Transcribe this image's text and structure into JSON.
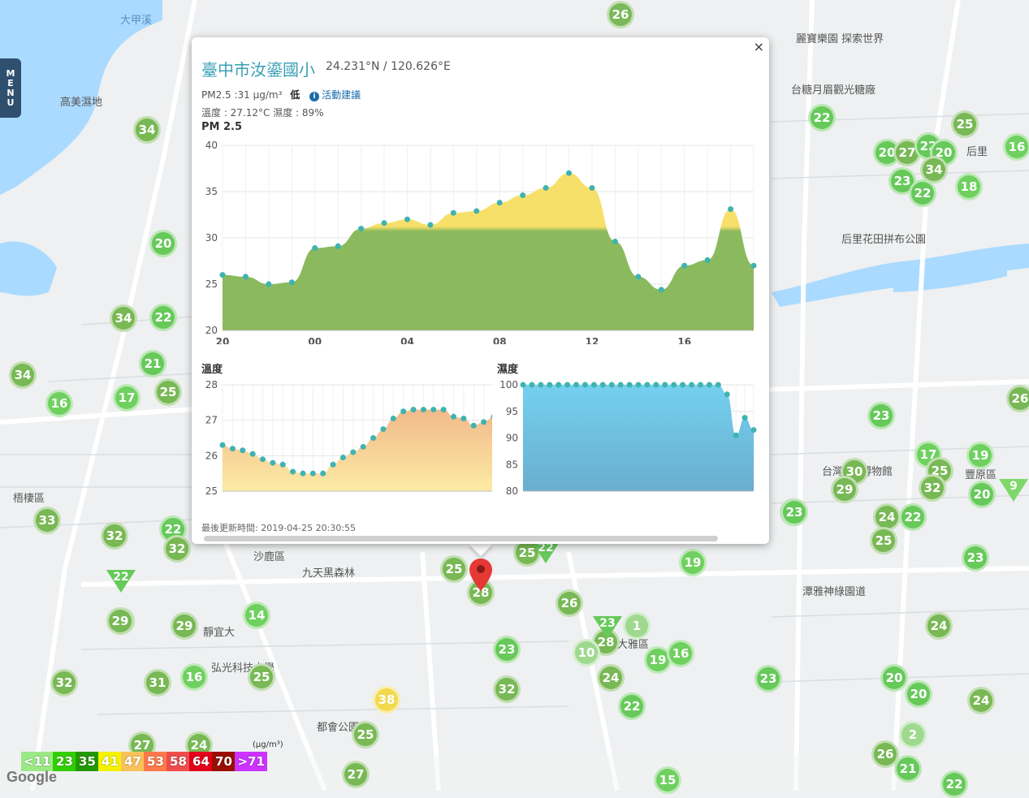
{
  "map": {
    "labels": [
      {
        "text": "大甲溪",
        "cls": "water"
      },
      {
        "text": "高美濕地",
        "cls": "place"
      },
      {
        "text": "麗寶樂園 探索世界",
        "cls": "place"
      },
      {
        "text": "台糖月眉觀光糖廠",
        "cls": "place"
      },
      {
        "text": "后里",
        "cls": "place"
      },
      {
        "text": "后里花田拼布公園",
        "cls": "place"
      },
      {
        "text": "梧棲區",
        "cls": "place"
      },
      {
        "text": "沙鹿區",
        "cls": "place"
      },
      {
        "text": "九天黑森林",
        "cls": "place"
      },
      {
        "text": "靜宜大",
        "cls": "place"
      },
      {
        "text": "弘光科技大學",
        "cls": "place"
      },
      {
        "text": "都會公園",
        "cls": "place"
      },
      {
        "text": "台灣",
        "cls": "place"
      },
      {
        "text": "博物館",
        "cls": "place"
      },
      {
        "text": "潭雅神綠園道",
        "cls": "place"
      },
      {
        "text": "豐原區",
        "cls": "place"
      },
      {
        "text": "大雅區",
        "cls": "place"
      }
    ],
    "markers": [
      {
        "v": "26",
        "c": "#7ab85a"
      },
      {
        "v": "34",
        "c": "#78b855"
      },
      {
        "v": "20",
        "c": "#66c95a"
      },
      {
        "v": "34",
        "c": "#78b855"
      },
      {
        "v": "22",
        "c": "#66c95a"
      },
      {
        "v": "21",
        "c": "#66c95a"
      },
      {
        "v": "34",
        "c": "#78b855"
      },
      {
        "v": "16",
        "c": "#6fd060"
      },
      {
        "v": "17",
        "c": "#6fd060"
      },
      {
        "v": "25",
        "c": "#78b855"
      },
      {
        "v": "33",
        "c": "#78b855"
      },
      {
        "v": "32",
        "c": "#78b855"
      },
      {
        "v": "22",
        "c": "#66c95a"
      },
      {
        "v": "32",
        "c": "#78b855"
      },
      {
        "v": "22",
        "c": "#66c95a"
      },
      {
        "v": "29",
        "c": "#78b855"
      },
      {
        "v": "29",
        "c": "#78b855"
      },
      {
        "v": "14",
        "c": "#6fd060"
      },
      {
        "v": "32",
        "c": "#78b855"
      },
      {
        "v": "31",
        "c": "#78b855"
      },
      {
        "v": "16",
        "c": "#6fd060"
      },
      {
        "v": "25",
        "c": "#78b855"
      },
      {
        "v": "27",
        "c": "#78b855"
      },
      {
        "v": "24",
        "c": "#78b855"
      },
      {
        "v": "25",
        "c": "#78b855"
      },
      {
        "v": "27",
        "c": "#78b855"
      },
      {
        "v": "38",
        "c": "#f2d94e"
      },
      {
        "v": "25",
        "c": "#78b855"
      },
      {
        "v": "28",
        "c": "#78b855"
      },
      {
        "v": "25",
        "c": "#78b855"
      },
      {
        "v": "26",
        "c": "#78b855"
      },
      {
        "v": "19",
        "c": "#6fd060"
      },
      {
        "v": "23",
        "c": "#66c95a"
      },
      {
        "v": "28",
        "c": "#78b855"
      },
      {
        "v": "1",
        "c": "#9ed98f"
      },
      {
        "v": "10",
        "c": "#9ed98f"
      },
      {
        "v": "19",
        "c": "#6fd060"
      },
      {
        "v": "16",
        "c": "#6fd060"
      },
      {
        "v": "24",
        "c": "#78b855"
      },
      {
        "v": "32",
        "c": "#78b855"
      },
      {
        "v": "22",
        "c": "#66c95a"
      },
      {
        "v": "15",
        "c": "#6fd060"
      },
      {
        "v": "23",
        "c": "#66c95a"
      },
      {
        "v": "20",
        "c": "#66c95a"
      },
      {
        "v": "30",
        "c": "#78b855"
      },
      {
        "v": "29",
        "c": "#78b855"
      },
      {
        "v": "24",
        "c": "#78b855"
      },
      {
        "v": "22",
        "c": "#66c95a"
      },
      {
        "v": "25",
        "c": "#78b855"
      },
      {
        "v": "23",
        "c": "#66c95a"
      },
      {
        "v": "17",
        "c": "#6fd060"
      },
      {
        "v": "25",
        "c": "#78b855"
      },
      {
        "v": "32",
        "c": "#78b855"
      },
      {
        "v": "19",
        "c": "#6fd060"
      },
      {
        "v": "20",
        "c": "#66c95a"
      },
      {
        "v": "23",
        "c": "#66c95a"
      },
      {
        "v": "24",
        "c": "#78b855"
      },
      {
        "v": "20",
        "c": "#66c95a"
      },
      {
        "v": "20",
        "c": "#66c95a"
      },
      {
        "v": "24",
        "c": "#78b855"
      },
      {
        "v": "2",
        "c": "#9ed98f"
      },
      {
        "v": "26",
        "c": "#78b855"
      },
      {
        "v": "21",
        "c": "#66c95a"
      },
      {
        "v": "22",
        "c": "#66c95a"
      },
      {
        "v": "22",
        "c": "#66c95a"
      },
      {
        "v": "25",
        "c": "#78b855"
      },
      {
        "v": "20",
        "c": "#66c95a"
      },
      {
        "v": "27",
        "c": "#78b855"
      },
      {
        "v": "22",
        "c": "#66c95a"
      },
      {
        "v": "20",
        "c": "#66c95a"
      },
      {
        "v": "34",
        "c": "#78b855"
      },
      {
        "v": "23",
        "c": "#66c95a"
      },
      {
        "v": "22",
        "c": "#66c95a"
      },
      {
        "v": "18",
        "c": "#6fd060"
      },
      {
        "v": "16",
        "c": "#6fd060"
      },
      {
        "v": "26",
        "c": "#78b855"
      },
      {
        "v": "23",
        "c": "#66c95a"
      }
    ],
    "triangles": [
      {
        "v": "22",
        "c": "#66c95a"
      },
      {
        "v": "22",
        "c": "#66c95a"
      },
      {
        "v": "23",
        "c": "#66c95a"
      },
      {
        "v": "9",
        "c": "#7fd86a"
      }
    ],
    "selected_marker_icon": "map-pin-icon"
  },
  "menu": {
    "letters": [
      "M",
      "E",
      "N",
      "U"
    ]
  },
  "popup": {
    "close_label": "×",
    "station_name": "臺中市汝鎏國小",
    "coords": "24.231°N / 120.626°E",
    "pm_text": "PM2.5 :31 μg/m³",
    "pm_level": "低",
    "info_icon": "i",
    "advice_label": "活動建議",
    "temp_humidity_text": "溫度 : 27.12°C  濕度 : 89%",
    "pm_chart_title": "PM 2.5",
    "temp_chart_title": "溫度",
    "hum_chart_title": "濕度",
    "updated_text": "最後更新時間: 2019-04-25 20:30:55"
  },
  "chart_data": [
    {
      "type": "area",
      "title": "PM 2.5",
      "ylim": [
        20,
        40
      ],
      "yticks": [
        "20",
        "25",
        "30",
        "35",
        "40"
      ],
      "xticks": [
        "20",
        "00",
        "04",
        "08",
        "12",
        "16"
      ],
      "x": [
        0,
        1,
        2,
        3,
        4,
        5,
        6,
        7,
        8,
        9,
        10,
        11,
        12,
        13,
        14,
        15,
        16,
        17,
        18,
        19,
        20,
        21,
        22,
        23
      ],
      "values": [
        26.0,
        25.8,
        25.0,
        25.2,
        28.9,
        29.1,
        31.0,
        31.6,
        32.0,
        31.4,
        32.7,
        32.9,
        33.8,
        34.6,
        35.4,
        37.0,
        35.4,
        29.6,
        25.8,
        24.4,
        27.0,
        27.6,
        33.1,
        27.0
      ],
      "colors": {
        "low": "#8bba5e",
        "high": "#f7e06a",
        "threshold": 32.8
      }
    },
    {
      "type": "area",
      "title": "溫度",
      "ylim": [
        25,
        28
      ],
      "yticks": [
        "25",
        "26",
        "27",
        "28"
      ],
      "values": [
        26.3,
        26.2,
        26.15,
        26.05,
        25.9,
        25.8,
        25.75,
        25.55,
        25.5,
        25.5,
        25.5,
        25.75,
        25.95,
        26.1,
        26.25,
        26.5,
        26.75,
        27.05,
        27.25,
        27.3,
        27.3,
        27.3,
        27.3,
        27.1,
        27.05,
        26.85,
        26.95,
        27.1
      ],
      "color_top": "#f1b98a",
      "color_bottom": "#fdeba5"
    },
    {
      "type": "area",
      "title": "濕度",
      "ylim": [
        80,
        100
      ],
      "yticks": [
        "80",
        "85",
        "90",
        "95",
        "100"
      ],
      "values": [
        100,
        100,
        100,
        100,
        100,
        100,
        100,
        100,
        100,
        100,
        100,
        100,
        100,
        100,
        100,
        100,
        100,
        100,
        100,
        100,
        100,
        100,
        100,
        98.2,
        90.5,
        93.8,
        91.5
      ],
      "color_top": "#74d0ef",
      "color_bottom": "#6aaecf"
    }
  ],
  "legend": {
    "unit": "(μg/m³)",
    "items": [
      {
        "label": "<11",
        "c": "#9be887"
      },
      {
        "label": "23",
        "c": "#31cf00"
      },
      {
        "label": "35",
        "c": "#229900"
      },
      {
        "label": "41",
        "c": "#f4f200"
      },
      {
        "label": "47",
        "c": "#f8c25a"
      },
      {
        "label": "53",
        "c": "#ff7a4a"
      },
      {
        "label": "58",
        "c": "#ef4d4d"
      },
      {
        "label": "64",
        "c": "#e2001a"
      },
      {
        "label": "70",
        "c": "#9a0f00"
      },
      {
        "label": ">71",
        "c": "#cc33ff"
      }
    ]
  },
  "google_label": "Google"
}
